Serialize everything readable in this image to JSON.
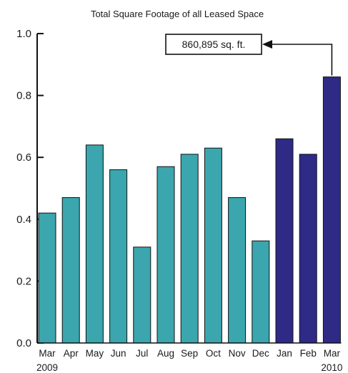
{
  "chart_data": {
    "type": "bar",
    "title": "Total Square Footage of all Leased Space",
    "xlabel": "",
    "ylabel": "",
    "ylim": [
      0,
      1.0
    ],
    "yticks": [
      "0.0",
      "0.2",
      "0.4",
      "0.6",
      "0.8",
      "1.0"
    ],
    "grid": false,
    "categories": [
      "Mar",
      "Apr",
      "May",
      "Jun",
      "Jul",
      "Aug",
      "Sep",
      "Oct",
      "Nov",
      "Dec",
      "Jan",
      "Feb",
      "Mar"
    ],
    "values": [
      0.42,
      0.47,
      0.64,
      0.56,
      0.31,
      0.57,
      0.61,
      0.63,
      0.47,
      0.33,
      0.66,
      0.61,
      0.86
    ],
    "year_labels": [
      {
        "text": "2009",
        "category_index": 0
      },
      {
        "text": "2010",
        "category_index": 12
      }
    ],
    "colors": {
      "year_2009": "#3ba6ad",
      "year_2010": "#2e2a86",
      "bar_outline": "#111111",
      "axis": "#111111"
    },
    "bar_color_groups": [
      "year_2009",
      "year_2009",
      "year_2009",
      "year_2009",
      "year_2009",
      "year_2009",
      "year_2009",
      "year_2009",
      "year_2009",
      "year_2009",
      "year_2010",
      "year_2010",
      "year_2010"
    ],
    "annotation": {
      "text": "860,895 sq. ft.",
      "target_category_index": 12
    }
  }
}
